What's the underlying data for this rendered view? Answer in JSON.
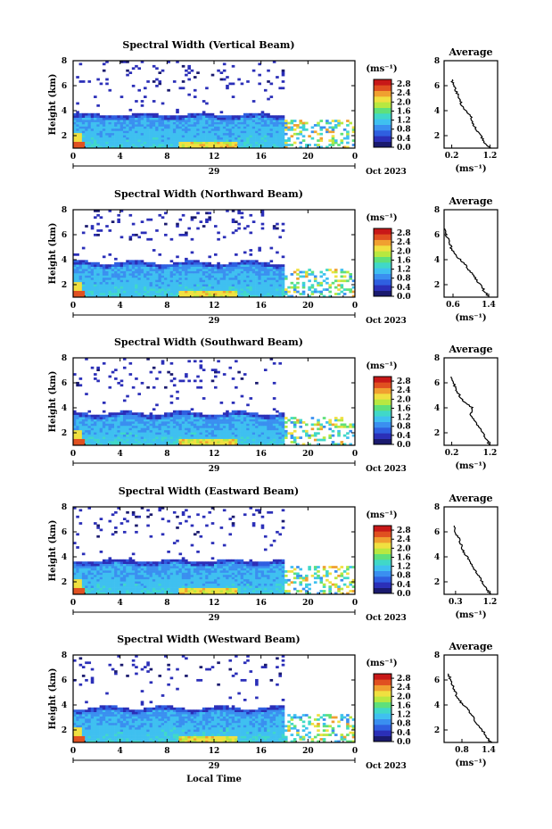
{
  "chart_data": [
    {
      "type": "heatmap",
      "title": "Spectral Width (Vertical Beam)",
      "ylabel": "Height (km)",
      "xticks": [
        "0",
        "4",
        "8",
        "12",
        "16",
        "20",
        "0"
      ],
      "date_label": "29",
      "xlim": [
        0,
        24
      ],
      "ylim": [
        1,
        8
      ],
      "yticks": [
        "2",
        "4",
        "6",
        "8"
      ],
      "colorbar_unit": "(ms⁻¹)",
      "colorbar_ticks": [
        "0.0",
        "0.4",
        "0.8",
        "1.2",
        "1.6",
        "2.0",
        "2.4",
        "2.8"
      ],
      "colorbar_range": [
        0,
        3.0
      ],
      "echo_top_km": 3.7,
      "data_end_hour": 18.0,
      "avg_title": "Average",
      "avg_xlim": [
        0.0,
        1.4
      ],
      "avg_xticks": [
        "0.2",
        "1.2"
      ],
      "avg_ylim": [
        1,
        8
      ],
      "avg_yticks": [
        "2",
        "4",
        "6",
        "8"
      ],
      "avg_xlabel": "(ms⁻¹)",
      "avg_profile": {
        "height_km": [
          1.0,
          1.5,
          2.0,
          2.5,
          3.0,
          3.5,
          4.0,
          4.5,
          5.0,
          5.5,
          6.0,
          6.5
        ],
        "width": [
          1.2,
          1.05,
          0.95,
          0.85,
          0.75,
          0.7,
          0.55,
          0.45,
          0.4,
          0.32,
          0.25,
          0.2
        ]
      }
    },
    {
      "type": "heatmap",
      "title": "Spectral Width (Northward Beam)",
      "ylabel": "Height (km)",
      "xticks": [
        "0",
        "4",
        "8",
        "12",
        "16",
        "20",
        "0"
      ],
      "date_label": "29",
      "xlim": [
        0,
        24
      ],
      "ylim": [
        1,
        8
      ],
      "yticks": [
        "2",
        "4",
        "6",
        "8"
      ],
      "colorbar_unit": "(ms⁻¹)",
      "colorbar_ticks": [
        "0.0",
        "0.4",
        "0.8",
        "1.2",
        "1.6",
        "2.0",
        "2.4",
        "2.8"
      ],
      "colorbar_range": [
        0,
        3.0
      ],
      "echo_top_km": 3.8,
      "data_end_hour": 18.0,
      "avg_title": "Average",
      "avg_xlim": [
        0.4,
        1.6
      ],
      "avg_xticks": [
        "0.6",
        "1.4"
      ],
      "avg_ylim": [
        1,
        8
      ],
      "avg_yticks": [
        "2",
        "4",
        "6",
        "8"
      ],
      "avg_xlabel": "(ms⁻¹)",
      "avg_profile": {
        "height_km": [
          1.0,
          1.5,
          2.0,
          2.5,
          3.0,
          3.5,
          4.0,
          4.5,
          5.0,
          5.5,
          6.0,
          6.5
        ],
        "width": [
          1.4,
          1.3,
          1.2,
          1.1,
          1.0,
          0.9,
          0.75,
          0.65,
          0.55,
          0.5,
          0.45,
          0.42
        ]
      }
    },
    {
      "type": "heatmap",
      "title": "Spectral Width (Southward Beam)",
      "ylabel": "Height (km)",
      "xticks": [
        "0",
        "4",
        "8",
        "12",
        "16",
        "20",
        "0"
      ],
      "date_label": "29",
      "xlim": [
        0,
        24
      ],
      "ylim": [
        1,
        8
      ],
      "yticks": [
        "2",
        "4",
        "6",
        "8"
      ],
      "colorbar_unit": "(ms⁻¹)",
      "colorbar_ticks": [
        "0.0",
        "0.4",
        "0.8",
        "1.2",
        "1.6",
        "2.0",
        "2.4",
        "2.8"
      ],
      "colorbar_range": [
        0,
        3.0
      ],
      "echo_top_km": 3.6,
      "data_end_hour": 18.0,
      "avg_title": "Average",
      "avg_xlim": [
        0.0,
        1.4
      ],
      "avg_xticks": [
        "0.2",
        "1.2"
      ],
      "avg_ylim": [
        1,
        8
      ],
      "avg_yticks": [
        "2",
        "4",
        "6",
        "8"
      ],
      "avg_xlabel": "(ms⁻¹)",
      "avg_profile": {
        "height_km": [
          1.0,
          1.5,
          2.0,
          2.5,
          3.0,
          3.5,
          4.0,
          4.5,
          5.0,
          5.5,
          6.0,
          6.5
        ],
        "width": [
          1.2,
          1.1,
          1.0,
          0.9,
          0.8,
          0.7,
          0.75,
          0.5,
          0.4,
          0.3,
          0.25,
          0.2
        ]
      }
    },
    {
      "type": "heatmap",
      "title": "Spectral Width (Eastward Beam)",
      "ylabel": "Height (km)",
      "xticks": [
        "0",
        "4",
        "8",
        "12",
        "16",
        "20",
        "0"
      ],
      "date_label": "29",
      "xlim": [
        0,
        24
      ],
      "ylim": [
        1,
        8
      ],
      "yticks": [
        "2",
        "4",
        "6",
        "8"
      ],
      "colorbar_unit": "(ms⁻¹)",
      "colorbar_ticks": [
        "0.0",
        "0.4",
        "0.8",
        "1.2",
        "1.6",
        "2.0",
        "2.4",
        "2.8"
      ],
      "colorbar_range": [
        0,
        3.0
      ],
      "echo_top_km": 3.7,
      "data_end_hour": 18.0,
      "avg_title": "Average",
      "avg_xlim": [
        0.0,
        1.4
      ],
      "avg_xticks": [
        "0.3",
        "1.2"
      ],
      "avg_ylim": [
        1,
        8
      ],
      "avg_yticks": [
        "2",
        "4",
        "6",
        "8"
      ],
      "avg_xlabel": "(ms⁻¹)",
      "avg_profile": {
        "height_km": [
          1.0,
          1.5,
          2.0,
          2.5,
          3.0,
          3.5,
          4.0,
          4.5,
          5.0,
          5.5,
          6.0,
          6.5
        ],
        "width": [
          1.2,
          1.1,
          1.0,
          0.9,
          0.8,
          0.7,
          0.6,
          0.5,
          0.45,
          0.38,
          0.3,
          0.25
        ]
      }
    },
    {
      "type": "heatmap",
      "title": "Spectral Width (Westward Beam)",
      "ylabel": "Height (km)",
      "xticks": [
        "0",
        "4",
        "8",
        "12",
        "16",
        "20",
        "0"
      ],
      "date_label": "29",
      "xlabel": "Local Time",
      "xlim": [
        0,
        24
      ],
      "ylim": [
        1,
        8
      ],
      "yticks": [
        "2",
        "4",
        "6",
        "8"
      ],
      "colorbar_unit": "(ms⁻¹)",
      "colorbar_ticks": [
        "0.0",
        "0.4",
        "0.8",
        "1.2",
        "1.6",
        "2.0",
        "2.4",
        "2.8"
      ],
      "colorbar_range": [
        0,
        3.0
      ],
      "echo_top_km": 3.8,
      "data_end_hour": 18.0,
      "avg_title": "Average",
      "avg_xlim": [
        0.4,
        1.6
      ],
      "avg_xticks": [
        "0.8",
        "1.4"
      ],
      "avg_ylim": [
        1,
        8
      ],
      "avg_yticks": [
        "2",
        "4",
        "6",
        "8"
      ],
      "avg_xlabel": "(ms⁻¹)",
      "avg_profile": {
        "height_km": [
          1.0,
          1.5,
          2.0,
          2.5,
          3.0,
          3.5,
          4.0,
          4.5,
          5.0,
          5.5,
          6.0,
          6.5
        ],
        "width": [
          1.45,
          1.35,
          1.25,
          1.15,
          1.05,
          0.95,
          0.85,
          0.7,
          0.65,
          0.6,
          0.55,
          0.5
        ]
      }
    }
  ],
  "date_right": "Oct 2023",
  "colors": {
    "colormap": [
      "#1a1a6e",
      "#2b2fb8",
      "#2f5fe0",
      "#3a8ff0",
      "#3fc0f0",
      "#40d8c8",
      "#5fe07a",
      "#b8e840",
      "#f0e040",
      "#f0a030",
      "#e05020",
      "#c81818"
    ],
    "axis": "#000000"
  }
}
